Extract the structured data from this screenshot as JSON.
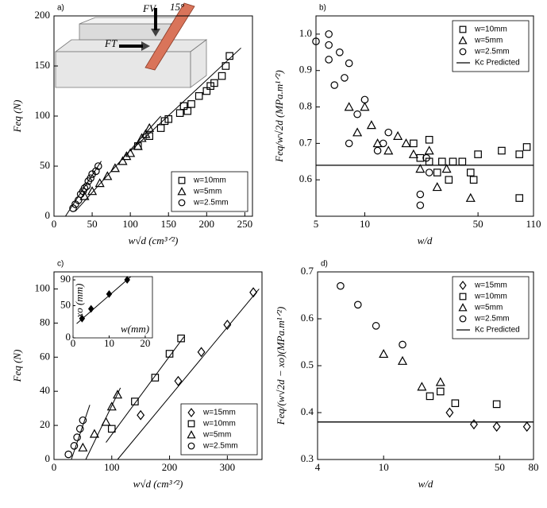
{
  "chart_data": [
    {
      "type": "scatter",
      "label": "a)",
      "xlabel": "w√d  (cm³ᐟ²)",
      "ylabel": "Feq (N)",
      "xlim": [
        0,
        260
      ],
      "xticks": [
        0,
        50,
        100,
        150,
        200,
        250
      ],
      "ylim": [
        0,
        200
      ],
      "yticks": [
        0,
        50,
        100,
        150,
        200
      ],
      "legend": "lower right",
      "annotations": [
        "FV",
        "15°",
        "FT"
      ],
      "series": [
        {
          "name": "w=10mm",
          "marker": "square",
          "color": "#000000",
          "x": [
            110,
            125,
            140,
            145,
            150,
            165,
            170,
            175,
            180,
            190,
            200,
            205,
            210,
            220,
            225,
            230
          ],
          "values": [
            70,
            80,
            88,
            95,
            97,
            103,
            110,
            105,
            112,
            120,
            125,
            130,
            133,
            140,
            150,
            160
          ]
        },
        {
          "name": "w=5mm",
          "marker": "triangle",
          "color": "#000000",
          "x": [
            40,
            50,
            60,
            70,
            80,
            90,
            95,
            100,
            110,
            115,
            120,
            125
          ],
          "values": [
            20,
            25,
            33,
            40,
            48,
            55,
            60,
            63,
            70,
            78,
            82,
            88
          ]
        },
        {
          "name": "w=2.5mm",
          "marker": "circle",
          "color": "#000000",
          "x": [
            25,
            28,
            32,
            35,
            38,
            40,
            43,
            45,
            48,
            50,
            55,
            58
          ],
          "values": [
            8,
            12,
            16,
            22,
            25,
            28,
            30,
            35,
            38,
            42,
            45,
            50
          ]
        }
      ],
      "fits": [
        {
          "x": [
            15,
            62
          ],
          "values": [
            0,
            55
          ]
        },
        {
          "x": [
            28,
            140
          ],
          "values": [
            5,
            100
          ]
        },
        {
          "x": [
            100,
            245
          ],
          "values": [
            65,
            168
          ]
        }
      ]
    },
    {
      "type": "scatter",
      "label": "b)",
      "xlabel": "w/d",
      "ylabel": "Feq/w√2d (MPa.m¹ᐟ²)",
      "xlog": true,
      "xlim": [
        5,
        110
      ],
      "xticks": [
        5,
        10,
        50,
        110
      ],
      "ylim": [
        0.5,
        1.05
      ],
      "yticks": [
        0.6,
        0.7,
        0.8,
        0.9,
        {
          "value": 1,
          "label": "1.0"
        }
      ],
      "legend": "upper right",
      "series": [
        {
          "name": "w=10mm",
          "marker": "square",
          "color": "#000000",
          "x": [
            20,
            22,
            25,
            25,
            28,
            30,
            33,
            35,
            40,
            45,
            47,
            50,
            70,
            90,
            90,
            100
          ],
          "values": [
            0.7,
            0.66,
            0.71,
            0.65,
            0.62,
            0.65,
            0.6,
            0.65,
            0.65,
            0.62,
            0.6,
            0.67,
            0.68,
            0.67,
            0.55,
            0.69
          ]
        },
        {
          "name": "w=5mm",
          "marker": "triangle",
          "color": "#000000",
          "x": [
            8,
            9,
            10,
            11,
            12,
            14,
            16,
            18,
            20,
            22,
            25,
            28,
            32,
            45
          ],
          "values": [
            0.8,
            0.73,
            0.8,
            0.75,
            0.7,
            0.68,
            0.72,
            0.7,
            0.67,
            0.63,
            0.68,
            0.58,
            0.63,
            0.55
          ]
        },
        {
          "name": "w=2.5mm",
          "marker": "circle",
          "color": "#000000",
          "x": [
            5,
            6,
            6,
            6,
            6.5,
            7,
            7.5,
            8,
            8,
            9,
            10,
            12,
            13,
            14,
            22,
            22,
            25,
            24
          ],
          "values": [
            0.98,
            1.0,
            0.97,
            0.93,
            0.86,
            0.95,
            0.88,
            0.92,
            0.7,
            0.78,
            0.82,
            0.68,
            0.7,
            0.73,
            0.56,
            0.53,
            0.62,
            0.66
          ]
        },
        {
          "name": "Kc Predicted",
          "marker": "line",
          "color": "#000000",
          "x": [
            5,
            110
          ],
          "values": [
            0.64,
            0.64
          ]
        }
      ]
    },
    {
      "type": "scatter",
      "label": "c)",
      "xlabel": "w√d  (cm³ᐟ²)",
      "ylabel": "Feq (N)",
      "xlim": [
        0,
        360
      ],
      "xticks": [
        0,
        100,
        200,
        300
      ],
      "ylim": [
        0,
        110
      ],
      "yticks": [
        0,
        20,
        40,
        60,
        80,
        100
      ],
      "legend": "lower right",
      "series": [
        {
          "name": "w=15mm",
          "marker": "diamond",
          "color": "#000000",
          "x": [
            150,
            215,
            255,
            300,
            345
          ],
          "values": [
            26,
            46,
            63,
            79,
            98
          ]
        },
        {
          "name": "w=10mm",
          "marker": "square",
          "color": "#000000",
          "x": [
            100,
            140,
            175,
            200,
            220
          ],
          "values": [
            18,
            34,
            48,
            62,
            71
          ]
        },
        {
          "name": "w=5mm",
          "marker": "triangle",
          "color": "#000000",
          "x": [
            50,
            70,
            90,
            100,
            110
          ],
          "values": [
            7,
            15,
            22,
            31,
            38
          ]
        },
        {
          "name": "w=2.5mm",
          "marker": "circle",
          "color": "#000000",
          "x": [
            25,
            35,
            40,
            45,
            50
          ],
          "values": [
            3,
            8,
            13,
            18,
            23
          ]
        }
      ],
      "fits": [
        {
          "x": [
            30,
            62
          ],
          "values": [
            0,
            32
          ]
        },
        {
          "x": [
            55,
            115
          ],
          "values": [
            0,
            42
          ]
        },
        {
          "x": [
            90,
            225
          ],
          "values": [
            10,
            72
          ]
        },
        {
          "x": [
            110,
            355
          ],
          "values": [
            0,
            100
          ]
        }
      ],
      "inset": {
        "xlabel": "w(mm)",
        "ylabel": "xo (mm)",
        "xlim": [
          0,
          22
        ],
        "xticks": [
          0,
          10,
          20
        ],
        "ylim": [
          0,
          95
        ],
        "yticks": [
          0,
          50,
          90
        ],
        "x": [
          2.5,
          5,
          10,
          15
        ],
        "values": [
          30,
          45,
          68,
          90
        ],
        "fit": {
          "x": [
            1,
            16
          ],
          "values": [
            22,
            95
          ]
        }
      }
    },
    {
      "type": "scatter",
      "label": "d)",
      "xlabel": "w/d",
      "ylabel": "Feq/(w√2d − xo)(MPa.m¹ᐟ²)",
      "xlog": true,
      "xlim": [
        4,
        80
      ],
      "xticks": [
        4,
        10,
        50,
        80
      ],
      "ylim": [
        0.3,
        0.7
      ],
      "yticks": [
        0.3,
        0.4,
        0.5,
        0.6,
        0.7
      ],
      "legend": "upper right",
      "series": [
        {
          "name": "w=15mm",
          "marker": "diamond",
          "color": "#000000",
          "x": [
            25,
            35,
            48,
            73
          ],
          "values": [
            0.4,
            0.375,
            0.37,
            0.37
          ]
        },
        {
          "name": "w=10mm",
          "marker": "square",
          "color": "#000000",
          "x": [
            19,
            22,
            27,
            48
          ],
          "values": [
            0.435,
            0.445,
            0.42,
            0.418
          ]
        },
        {
          "name": "w=5mm",
          "marker": "triangle",
          "color": "#000000",
          "x": [
            10,
            13,
            17,
            22
          ],
          "values": [
            0.525,
            0.51,
            0.455,
            0.465
          ]
        },
        {
          "name": "w=2.5mm",
          "marker": "circle",
          "color": "#000000",
          "x": [
            5.5,
            7,
            9,
            13
          ],
          "values": [
            0.67,
            0.63,
            0.585,
            0.545
          ]
        },
        {
          "name": "Kc Predicted",
          "marker": "line",
          "color": "#000000",
          "x": [
            4,
            80
          ],
          "values": [
            0.38,
            0.38
          ]
        }
      ]
    }
  ]
}
